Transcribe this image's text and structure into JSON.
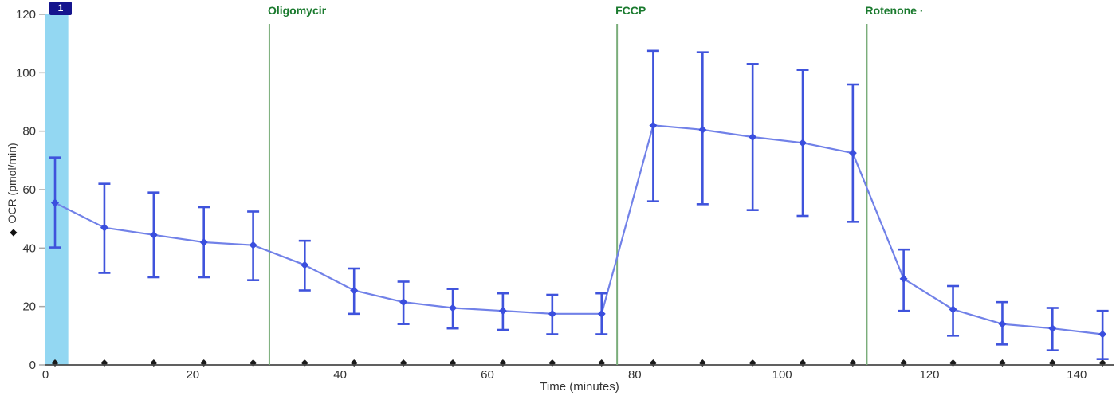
{
  "chart_data": {
    "type": "line",
    "title": "",
    "xlabel": "Time (minutes)",
    "ylabel": "OCR (pmol/min)",
    "ylabel_marker": "◆",
    "xlim": [
      0,
      145
    ],
    "ylim": [
      0,
      120
    ],
    "x_ticks": [
      0,
      20,
      40,
      60,
      80,
      100,
      120,
      140
    ],
    "y_ticks": [
      0,
      20,
      40,
      60,
      80,
      100,
      120
    ],
    "grid": false,
    "legend": "none",
    "series": [
      {
        "name": "OCR",
        "marker": "diamond",
        "x": [
          1.3,
          8.0,
          14.7,
          21.5,
          28.2,
          35.2,
          41.9,
          48.6,
          55.3,
          62.1,
          68.8,
          75.5,
          82.5,
          89.2,
          96.0,
          102.8,
          109.6,
          116.5,
          123.2,
          129.9,
          136.7,
          143.5
        ],
        "y": [
          55.5,
          47.0,
          44.5,
          42.0,
          41.0,
          34.2,
          25.5,
          21.5,
          19.5,
          18.5,
          17.5,
          17.5,
          82.0,
          80.5,
          78.0,
          76.0,
          72.5,
          29.5,
          19.0,
          14.0,
          12.5,
          10.5
        ],
        "err_low": [
          40.2,
          31.5,
          30.0,
          30.0,
          29.0,
          25.5,
          17.5,
          14.0,
          12.5,
          12.0,
          10.5,
          10.5,
          56.0,
          55.0,
          53.0,
          51.0,
          49.0,
          18.5,
          10.0,
          7.0,
          5.0,
          2.0
        ],
        "err_high": [
          71.0,
          62.0,
          59.0,
          54.0,
          52.5,
          42.5,
          33.0,
          28.5,
          26.0,
          24.5,
          24.0,
          24.5,
          107.5,
          107.0,
          103.0,
          101.0,
          96.0,
          39.5,
          27.0,
          21.5,
          19.5,
          18.5
        ]
      }
    ],
    "injections": [
      {
        "label": "Oligomycin",
        "time": 30.4
      },
      {
        "label": "FCCP",
        "time": 77.6
      },
      {
        "label": "Rotenone ·",
        "time": 111.5
      }
    ],
    "measurement_band": {
      "label": "1",
      "t_start": 0,
      "t_end": 3.1
    },
    "colors": {
      "series_line": "#7181e8",
      "marker": "#3a4ede",
      "error_bar": "#3f53dc",
      "injection_line": "#7aad7a",
      "injection_label": "#1a7a2e",
      "band_fill": "#93d7f2",
      "badge_bg": "#15158e",
      "badge_text": "#ffffff",
      "axis_line": "#4a4a4a",
      "y_axis_line": "#c8c8c8",
      "tick_mark": "#a8a8a8",
      "tick_label": "#333333",
      "axis_marker": "#1a1a1a"
    }
  }
}
